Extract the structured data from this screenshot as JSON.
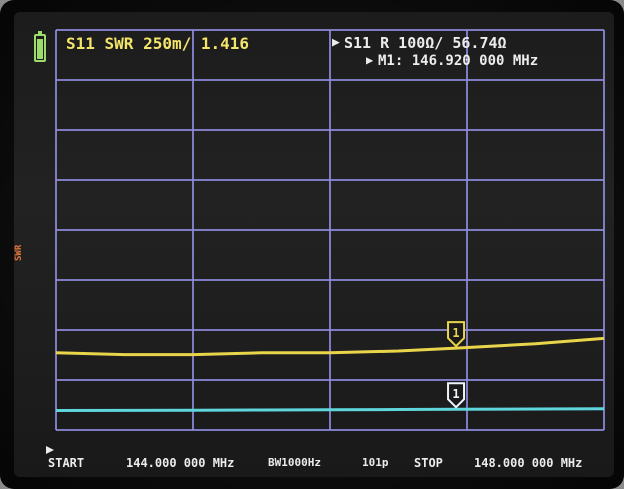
{
  "header": {
    "trace1_label": "S11 SWR 250m/ 1.416",
    "trace2_label": "S11 R 100Ω/ 56.74Ω",
    "marker_readout": "M1: 146.920 000 MHz",
    "marker_arrow": "▶",
    "trace2_arrow": "▶"
  },
  "side_scale": "SWR",
  "footer": {
    "start_label": "START",
    "start_value": "144.000 000 MHz",
    "bandwidth": "BW1000Hz",
    "points": "101p",
    "stop_label": "STOP",
    "stop_value": "148.000 000 MHz"
  },
  "marker_label": "1",
  "colors": {
    "swr_trace": "#e8d54a",
    "resistance_trace": "#5fd6dc",
    "grid": "#8f8ce0",
    "battery": "#9ddc6a"
  },
  "chart_data": {
    "type": "line",
    "title": "",
    "xlabel": "",
    "ylabel": "",
    "x_range_mhz": [
      144.0,
      148.0
    ],
    "grid": true,
    "marker_frequency_mhz": 146.92,
    "series": [
      {
        "name": "S11 SWR",
        "x": [
          144.0,
          144.5,
          145.0,
          145.5,
          146.0,
          146.5,
          146.92,
          147.5,
          148.0
        ],
        "values": [
          1.39,
          1.38,
          1.38,
          1.39,
          1.39,
          1.4,
          1.416,
          1.44,
          1.47
        ],
        "scale_per_div": 0.25
      },
      {
        "name": "S11 R",
        "x": [
          144.0,
          144.5,
          145.0,
          145.5,
          146.0,
          146.5,
          146.92,
          147.5,
          148.0
        ],
        "values": [
          52.0,
          52.5,
          53.2,
          54.0,
          54.8,
          55.9,
          56.74,
          57.8,
          58.8
        ],
        "scale_per_div": 100
      }
    ]
  }
}
